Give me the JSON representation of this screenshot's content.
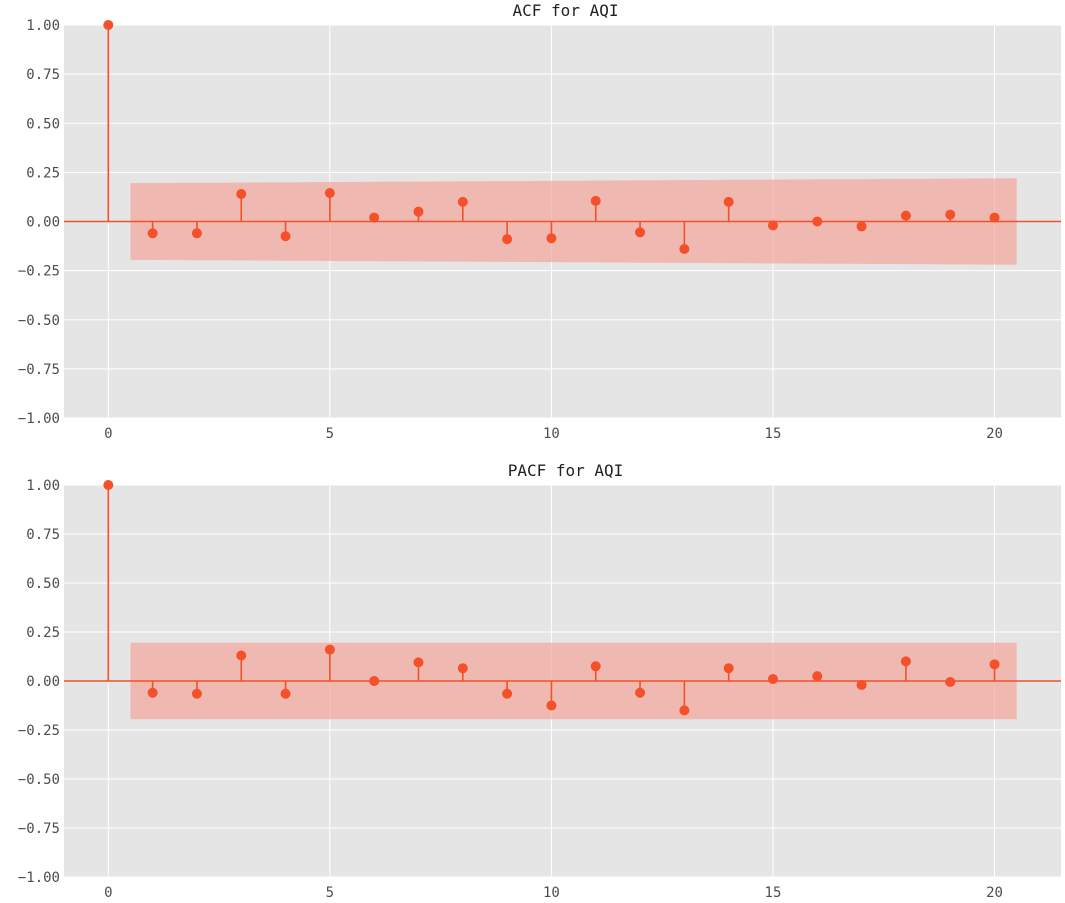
{
  "chart_data": [
    {
      "type": "stem",
      "title": "ACF for AQI",
      "xlabel": "",
      "ylabel": "",
      "xlim": [
        -1,
        21.5
      ],
      "ylim": [
        -1.0,
        1.0
      ],
      "x_ticks": [
        0,
        5,
        10,
        15,
        20
      ],
      "y_ticks": [
        -1.0,
        -0.75,
        -0.5,
        -0.25,
        0.0,
        0.25,
        0.5,
        0.75,
        1.0
      ],
      "y_tick_labels": [
        "−1.00",
        "−0.75",
        "−0.50",
        "−0.25",
        "0.00",
        "0.25",
        "0.50",
        "0.75",
        "1.00"
      ],
      "x_tick_labels": [
        "0",
        "5",
        "10",
        "15",
        "20"
      ],
      "grid": true,
      "color": "#f4502a",
      "band_color": "#f4a59a",
      "background": "#e5e5e5",
      "lags": [
        0,
        1,
        2,
        3,
        4,
        5,
        6,
        7,
        8,
        9,
        10,
        11,
        12,
        13,
        14,
        15,
        16,
        17,
        18,
        19,
        20
      ],
      "values": [
        1.0,
        -0.06,
        -0.06,
        0.14,
        -0.075,
        0.145,
        0.02,
        0.05,
        0.1,
        -0.09,
        -0.085,
        0.105,
        -0.055,
        -0.14,
        0.1,
        -0.02,
        0.0,
        -0.025,
        0.03,
        0.035,
        0.02
      ],
      "confidence_band": {
        "lags": [
          0.5,
          20.5
        ],
        "upper": [
          0.195,
          0.22
        ],
        "lower": [
          -0.195,
          -0.22
        ]
      }
    },
    {
      "type": "stem",
      "title": "PACF for AQI",
      "xlabel": "",
      "ylabel": "",
      "xlim": [
        -1,
        21.5
      ],
      "ylim": [
        -1.0,
        1.0
      ],
      "x_ticks": [
        0,
        5,
        10,
        15,
        20
      ],
      "y_ticks": [
        -1.0,
        -0.75,
        -0.5,
        -0.25,
        0.0,
        0.25,
        0.5,
        0.75,
        1.0
      ],
      "y_tick_labels": [
        "−1.00",
        "−0.75",
        "−0.50",
        "−0.25",
        "0.00",
        "0.25",
        "0.50",
        "0.75",
        "1.00"
      ],
      "x_tick_labels": [
        "0",
        "5",
        "10",
        "15",
        "20"
      ],
      "grid": true,
      "color": "#f4502a",
      "band_color": "#f4a59a",
      "background": "#e5e5e5",
      "lags": [
        0,
        1,
        2,
        3,
        4,
        5,
        6,
        7,
        8,
        9,
        10,
        11,
        12,
        13,
        14,
        15,
        16,
        17,
        18,
        19,
        20
      ],
      "values": [
        1.0,
        -0.06,
        -0.065,
        0.13,
        -0.065,
        0.16,
        0.0,
        0.095,
        0.065,
        -0.065,
        -0.125,
        0.075,
        -0.06,
        -0.15,
        0.065,
        0.01,
        0.025,
        -0.02,
        0.1,
        -0.005,
        0.085
      ],
      "confidence_band": {
        "lags": [
          0.5,
          20.5
        ],
        "upper": [
          0.195,
          0.195
        ],
        "lower": [
          -0.195,
          -0.195
        ]
      }
    }
  ]
}
